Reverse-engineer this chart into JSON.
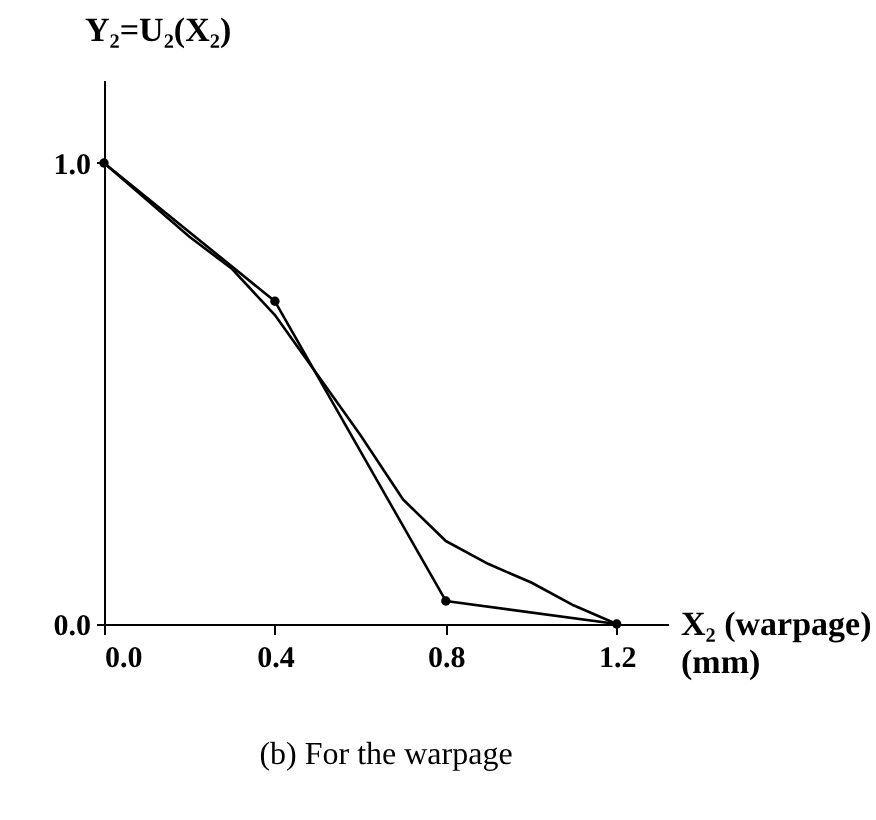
{
  "chart_data": {
    "type": "line",
    "xlabel": "X₂ (warpage)\n(mm)",
    "ylabel": "Y₂=U₂(X₂)",
    "annotations": [
      "(b) For the warpage"
    ],
    "xlim": [
      0,
      1.32
    ],
    "ylim": [
      0,
      1.18
    ],
    "xticks": [
      {
        "value": 0,
        "label": "0.0"
      },
      {
        "value": 0.4,
        "label": "0.4"
      },
      {
        "value": 0.8,
        "label": "0.8"
      },
      {
        "value": 1.2,
        "label": "1.2"
      }
    ],
    "yticks": [
      {
        "value": 0,
        "label": "0.0"
      },
      {
        "value": 1,
        "label": "1.0"
      }
    ],
    "series": [
      {
        "color": "#000000",
        "marker": "circle",
        "x": [
          0,
          0.4,
          0.8,
          1.2
        ],
        "values": [
          1,
          0.7,
          0.05,
          0
        ]
      },
      {
        "color": "#000000",
        "marker": "none",
        "x": [
          0,
          0.1,
          0.2,
          0.3,
          0.4,
          0.5,
          0.6,
          0.7,
          0.8,
          0.9,
          1.0,
          1.1,
          1.2
        ],
        "values": [
          1,
          0.92,
          0.84,
          0.77,
          0.67,
          0.54,
          0.41,
          0.27,
          0.18,
          0.13,
          0.09,
          0.04,
          0
        ]
      }
    ]
  }
}
